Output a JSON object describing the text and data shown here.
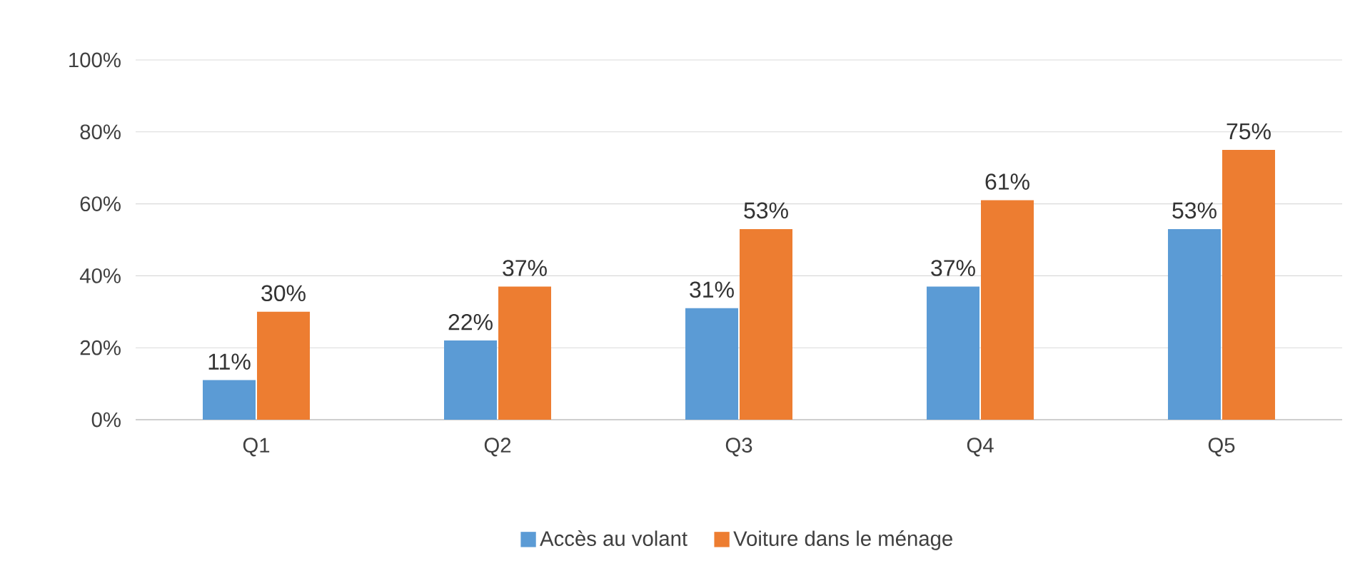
{
  "chart_data": {
    "type": "bar",
    "categories": [
      "Q1",
      "Q2",
      "Q3",
      "Q4",
      "Q5"
    ],
    "series": [
      {
        "name": "Accès au volant",
        "color": "#5b9bd5",
        "values": [
          11,
          22,
          31,
          37,
          53
        ],
        "value_labels": [
          "11%",
          "22%",
          "31%",
          "37%",
          "53%"
        ]
      },
      {
        "name": "Voiture dans le ménage",
        "color": "#ed7d31",
        "values": [
          30,
          37,
          53,
          61,
          75
        ],
        "value_labels": [
          "30%",
          "37%",
          "53%",
          "61%",
          "75%"
        ]
      }
    ],
    "ylim": [
      0,
      100
    ],
    "yticks": [
      {
        "value": 0,
        "label": "0%"
      },
      {
        "value": 20,
        "label": "20%"
      },
      {
        "value": 40,
        "label": "40%"
      },
      {
        "value": 60,
        "label": "60%"
      },
      {
        "value": 80,
        "label": "80%"
      },
      {
        "value": 100,
        "label": "100%"
      }
    ],
    "grid": "y",
    "legend": "bottom"
  }
}
